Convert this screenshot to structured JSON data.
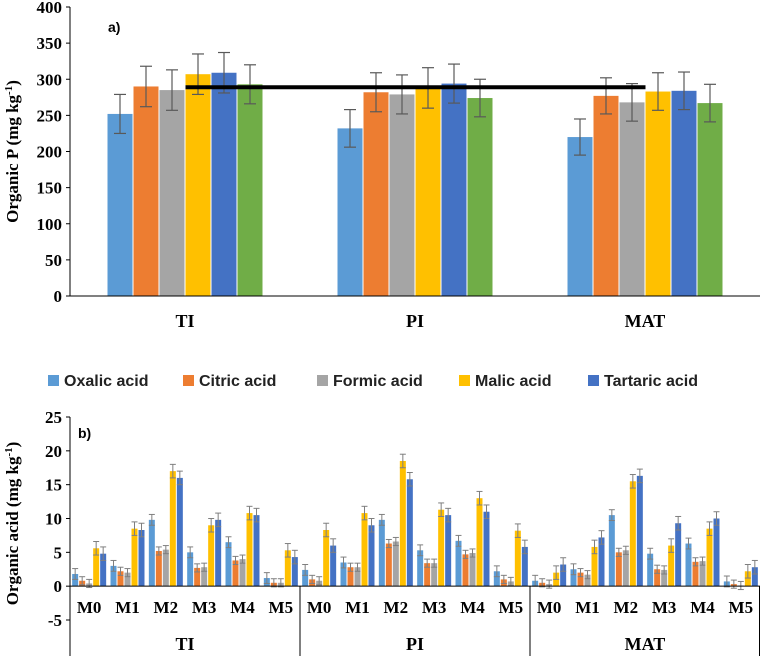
{
  "colors": {
    "oxalic": "#5b9bd5",
    "citric": "#ed7d31",
    "formic": "#a5a5a5",
    "malic": "#ffc000",
    "tartaric": "#4472c4",
    "sixth": "#70ad47"
  },
  "chart_data": [
    {
      "type": "bar",
      "panel_label": "a)",
      "ylabel_main": "Organic P (mg kg",
      "ylabel_sup": "-1",
      "ylabel_end": ")",
      "ylim": [
        0,
        400
      ],
      "yticks": [
        0,
        50,
        100,
        150,
        200,
        250,
        300,
        350,
        400
      ],
      "categories": [
        "TI",
        "PI",
        "MAT"
      ],
      "series": [
        {
          "values": [
            252,
            232,
            220
          ],
          "errors": [
            27,
            26,
            25
          ]
        },
        {
          "values": [
            290,
            282,
            277
          ],
          "errors": [
            28,
            27,
            25
          ]
        },
        {
          "values": [
            285,
            279,
            268
          ],
          "errors": [
            28,
            27,
            26
          ]
        },
        {
          "values": [
            307,
            288,
            283
          ],
          "errors": [
            28,
            28,
            26
          ]
        },
        {
          "values": [
            309,
            294,
            284
          ],
          "errors": [
            28,
            27,
            26
          ]
        },
        {
          "values": [
            293,
            274,
            267
          ],
          "errors": [
            27,
            26,
            26
          ]
        }
      ],
      "reference_line": {
        "y": 289,
        "from": "TI",
        "to": "MAT"
      },
      "legend": "none",
      "grid": false
    },
    {
      "type": "bar",
      "panel_label": "b)",
      "ylabel_main": "Organic acid (mg kg",
      "ylabel_sup": "-1",
      "ylabel_end": ")",
      "ylim": [
        -5,
        25
      ],
      "yticks": [
        -5,
        0,
        5,
        10,
        15,
        20,
        25
      ],
      "groups": [
        "TI",
        "PI",
        "MAT"
      ],
      "subcategories": [
        "M0",
        "M1",
        "M2",
        "M3",
        "M4",
        "M5"
      ],
      "legend_position": "top",
      "grid": false,
      "series": [
        {
          "name": "Oxalic acid",
          "values": [
            1.8,
            3.0,
            9.8,
            5.0,
            6.5,
            1.2,
            2.4,
            3.5,
            9.8,
            5.3,
            6.7,
            2.2,
            0.8,
            2.5,
            10.5,
            4.8,
            6.3,
            0.7
          ],
          "errors": [
            0.8,
            0.8,
            0.8,
            0.8,
            0.8,
            0.8,
            0.8,
            0.8,
            0.8,
            0.8,
            0.8,
            0.8,
            0.8,
            0.8,
            0.8,
            0.8,
            0.8,
            0.8
          ]
        },
        {
          "name": "Citric acid",
          "values": [
            0.8,
            2.2,
            5.2,
            2.7,
            3.8,
            0.5,
            1.0,
            2.8,
            6.3,
            3.4,
            4.7,
            1.0,
            0.5,
            2.0,
            5.0,
            2.5,
            3.6,
            0.3
          ],
          "errors": [
            0.6,
            0.6,
            0.6,
            0.6,
            0.6,
            0.6,
            0.6,
            0.6,
            0.6,
            0.6,
            0.6,
            0.6,
            0.6,
            0.6,
            0.6,
            0.6,
            0.6,
            0.6
          ]
        },
        {
          "name": "Formic acid",
          "values": [
            0.4,
            2.0,
            5.4,
            2.8,
            4.0,
            0.5,
            0.8,
            2.8,
            6.6,
            3.4,
            4.9,
            0.7,
            0.3,
            1.7,
            5.3,
            2.4,
            3.7,
            0.1
          ],
          "errors": [
            0.6,
            0.6,
            0.6,
            0.6,
            0.6,
            0.6,
            0.6,
            0.6,
            0.6,
            0.6,
            0.6,
            0.6,
            0.6,
            0.6,
            0.6,
            0.6,
            0.6,
            0.6
          ]
        },
        {
          "name": "Malic acid",
          "values": [
            5.6,
            8.5,
            17.0,
            9.0,
            10.8,
            5.3,
            8.3,
            10.8,
            18.5,
            11.3,
            13.0,
            8.2,
            2.0,
            5.8,
            15.5,
            6.0,
            8.5,
            2.2
          ],
          "errors": [
            1.0,
            1.0,
            1.0,
            1.0,
            1.0,
            1.0,
            1.0,
            1.0,
            1.0,
            1.0,
            1.0,
            1.0,
            1.0,
            1.0,
            1.0,
            1.0,
            1.0,
            1.0
          ]
        },
        {
          "name": "Tartaric acid",
          "values": [
            4.8,
            8.3,
            16.0,
            9.8,
            10.5,
            4.3,
            6.0,
            9.0,
            15.8,
            10.5,
            11.0,
            5.8,
            3.2,
            7.2,
            16.3,
            9.3,
            10.0,
            2.8
          ],
          "errors": [
            1.0,
            1.0,
            1.0,
            1.0,
            1.0,
            1.0,
            1.0,
            1.0,
            1.0,
            1.0,
            1.0,
            1.0,
            1.0,
            1.0,
            1.0,
            1.0,
            1.0,
            1.0
          ]
        }
      ]
    }
  ]
}
